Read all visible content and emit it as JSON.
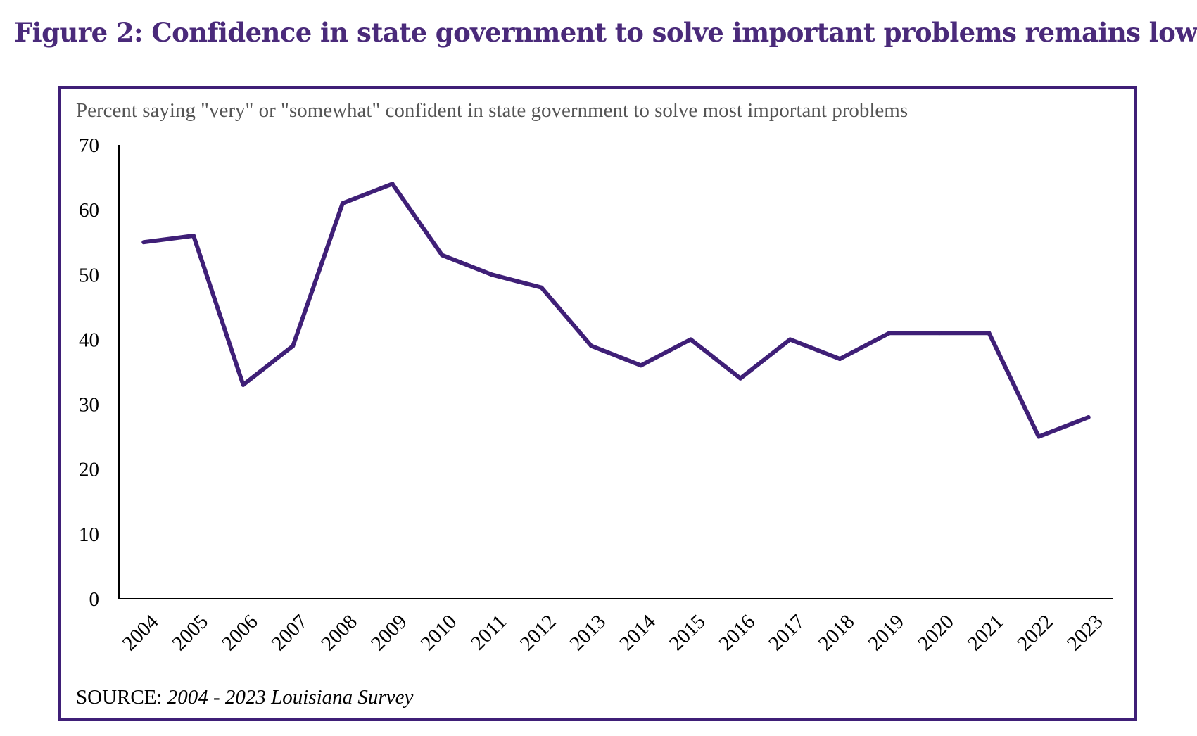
{
  "figure": {
    "title": "Figure 2: Confidence in state government to solve important problems remains low",
    "source_label": "SOURCE:",
    "source_text": "2004 - 2023 Louisiana Survey"
  },
  "colors": {
    "title": "#4a2a7a",
    "frame": "#3f1f77",
    "line": "#3f1f77",
    "subtitle": "#555555",
    "axis": "#000000"
  },
  "chart_data": {
    "type": "line",
    "subtitle": "Percent  saying \"very\" or \"somewhat\" confident in state government to solve most important problems",
    "xlabel": "",
    "ylabel": "",
    "ylim": [
      0,
      70
    ],
    "yticks": [
      0,
      10,
      20,
      30,
      40,
      50,
      60,
      70
    ],
    "categories": [
      "2004",
      "2005",
      "2006",
      "2007",
      "2008",
      "2009",
      "2010",
      "2011",
      "2012",
      "2013",
      "2014",
      "2015",
      "2016",
      "2017",
      "2018",
      "2019",
      "2020",
      "2021",
      "2022",
      "2023"
    ],
    "series": [
      {
        "values": [
          55,
          56,
          33,
          39,
          61,
          64,
          53,
          50,
          48,
          39,
          36,
          40,
          34,
          40,
          37,
          41,
          41,
          41,
          25,
          28
        ]
      }
    ],
    "grid": false,
    "legend": "none"
  }
}
